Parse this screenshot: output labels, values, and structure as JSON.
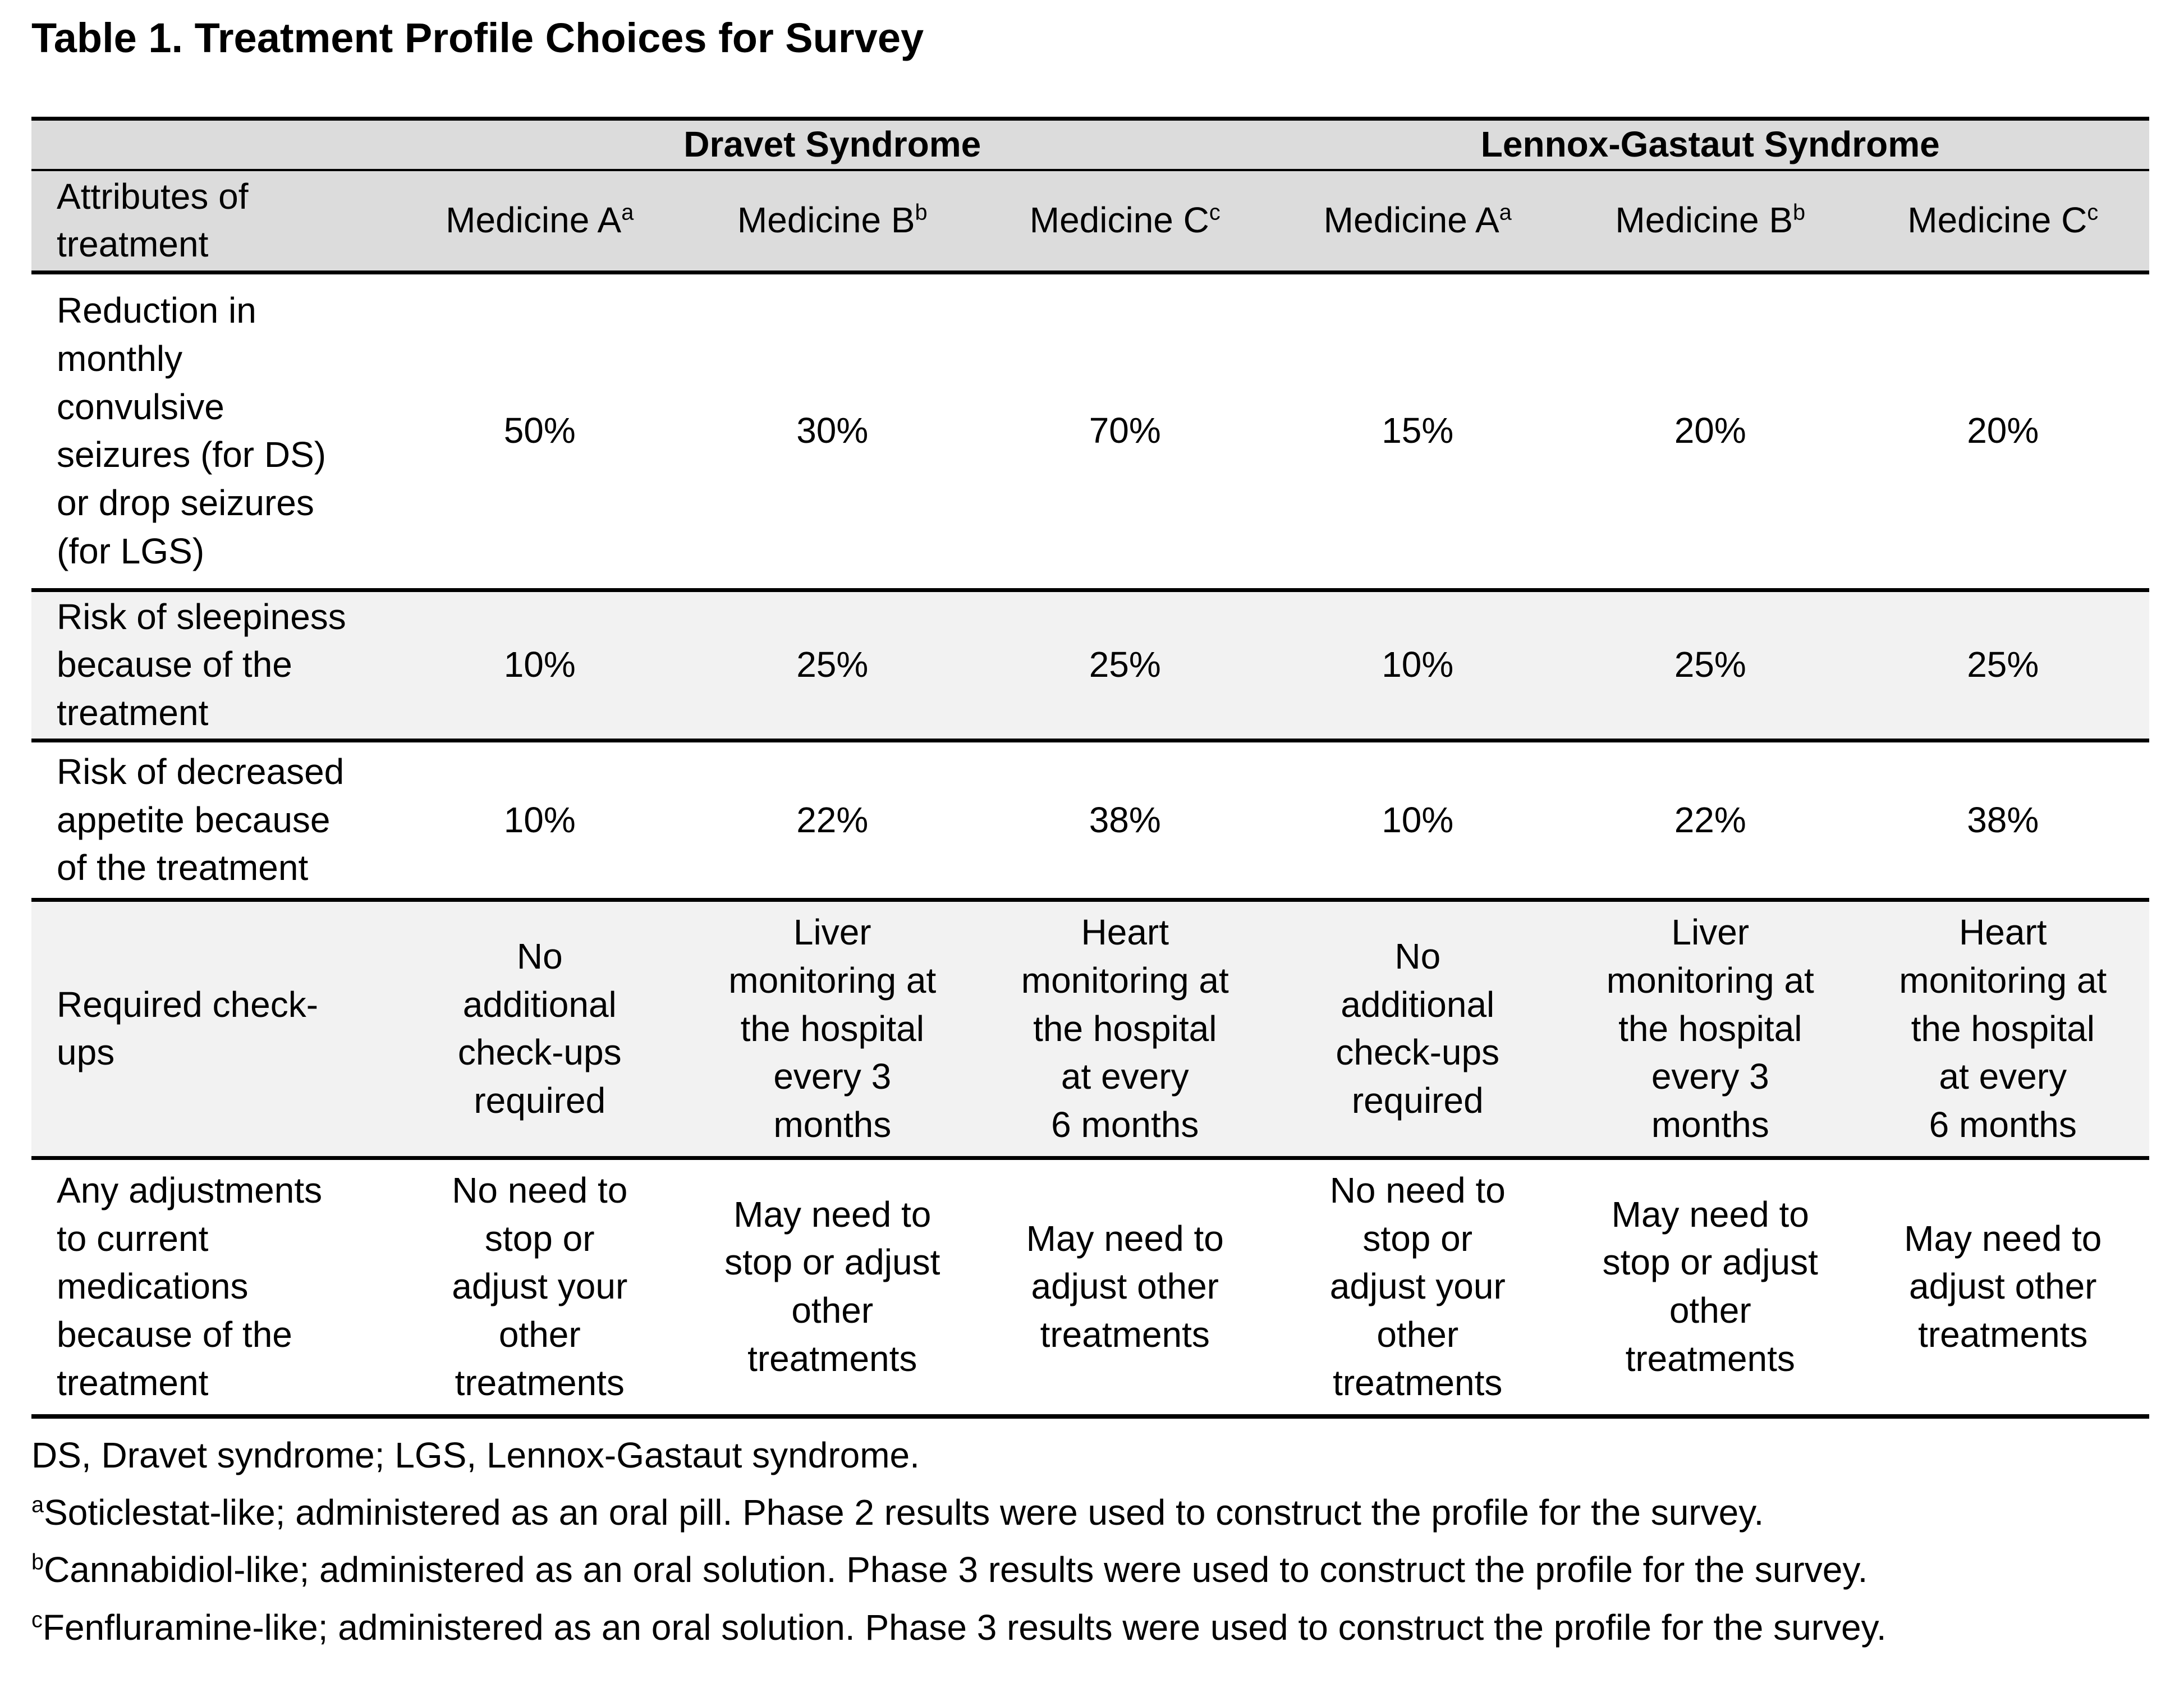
{
  "page_title": "Table 1. Treatment Profile Choices for Survey",
  "table": {
    "group_header_row": {
      "groups": [
        {
          "label": "Dravet Syndrome"
        },
        {
          "label": "Lennox-Gastaut Syndrome"
        }
      ]
    },
    "column_header_row": {
      "attribute_header": "Attributes of\ntreatment",
      "medicines": [
        {
          "name": "Medicine A",
          "sup": "a"
        },
        {
          "name": "Medicine B",
          "sup": "b"
        },
        {
          "name": "Medicine C",
          "sup": "c"
        },
        {
          "name": "Medicine A",
          "sup": "a"
        },
        {
          "name": "Medicine B",
          "sup": "b"
        },
        {
          "name": "Medicine C",
          "sup": "c"
        }
      ]
    },
    "rows": [
      {
        "attribute": "Reduction in\nmonthly\nconvulsive\nseizures (for DS)\nor drop seizures\n(for LGS)",
        "values": [
          "50%",
          "30%",
          "70%",
          "15%",
          "20%",
          "20%"
        ]
      },
      {
        "attribute": "Risk of sleepiness\nbecause of the\ntreatment",
        "values": [
          "10%",
          "25%",
          "25%",
          "10%",
          "25%",
          "25%"
        ]
      },
      {
        "attribute": "Risk of decreased\nappetite because\nof the treatment",
        "values": [
          "10%",
          "22%",
          "38%",
          "10%",
          "22%",
          "38%"
        ]
      },
      {
        "attribute": "Required check-\nups",
        "values": [
          "No\nadditional\ncheck-ups\nrequired",
          "Liver\nmonitoring at\nthe hospital\nevery 3\nmonths",
          "Heart\nmonitoring at\nthe hospital\nat every\n6 months",
          "No\nadditional\ncheck-ups\nrequired",
          "Liver\nmonitoring at\nthe hospital\nevery 3\nmonths",
          "Heart\nmonitoring at\nthe hospital\nat every\n6 months"
        ]
      },
      {
        "attribute": "Any adjustments\nto current\nmedications\nbecause of the\ntreatment",
        "values": [
          "No need to\nstop or\nadjust your\nother\ntreatments",
          "May need to\nstop or adjust\nother\ntreatments",
          "May need to\nadjust other\ntreatments",
          "No need to\nstop or\nadjust your\nother\ntreatments",
          "May need to\nstop or adjust\nother\ntreatments",
          "May need to\nadjust other\ntreatments"
        ]
      }
    ]
  },
  "footnotes": [
    {
      "sup": "",
      "text": "DS, Dravet syndrome; LGS, Lennox-Gastaut syndrome."
    },
    {
      "sup": "a",
      "text": "Soticlestat-like; administered as an oral pill. Phase 2 results were used to construct the profile for the survey."
    },
    {
      "sup": "b",
      "text": "Cannabidiol-like; administered as an oral solution. Phase 3 results were used to construct the profile for the survey."
    },
    {
      "sup": "c",
      "text": "Fenfluramine-like; administered as an oral solution. Phase 3 results were used to construct the profile for the survey."
    }
  ],
  "colors": {
    "header_shading": "#dcdcdc",
    "row_shading": "#f2f2f2",
    "border": "#000000",
    "text": "#000000",
    "background": "#ffffff"
  }
}
